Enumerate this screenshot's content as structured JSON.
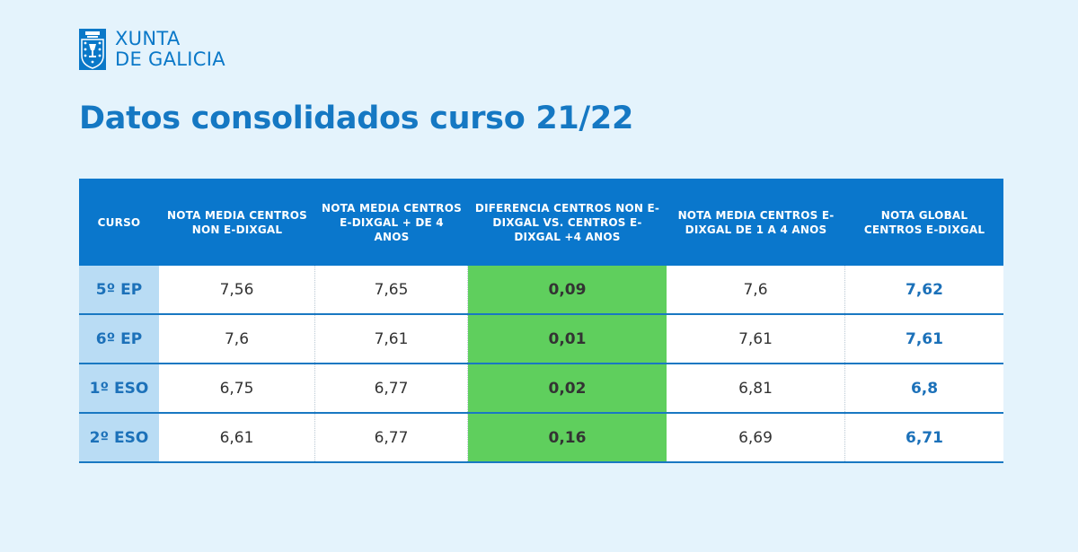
{
  "logo": {
    "line1": "XUNTA",
    "line2": "DE GALICIA"
  },
  "title": "Datos consolidados curso 21/22",
  "colors": {
    "background": "#e4f3fc",
    "header": "#0a77cc",
    "course_cell": "#b9dcf4",
    "difference_cell": "#5fcf5d",
    "accent_text": "#1c71b9"
  },
  "table": {
    "headers": [
      "CURSO",
      "NOTA MEDIA CENTROS NON E-DIXGAL",
      "NOTA MEDIA CENTROS E-DIXGAL + DE 4 ANOS",
      "DIFERENCIA CENTROS NON E-DIXGAL VS. CENTROS E-DIXGAL +4 ANOS",
      "NOTA MEDIA CENTROS E-DIXGAL DE 1 A 4 ANOS",
      "NOTA GLOBAL CENTROS E-DIXGAL"
    ],
    "rows": [
      [
        "5º EP",
        "7,56",
        "7,65",
        "0,09",
        "7,6",
        "7,62"
      ],
      [
        "6º EP",
        "7,6",
        "7,61",
        "0,01",
        "7,61",
        "7,61"
      ],
      [
        "1º ESO",
        "6,75",
        "6,77",
        "0,02",
        "6,81",
        "6,8"
      ],
      [
        "2º ESO",
        "6,61",
        "6,77",
        "0,16",
        "6,69",
        "6,71"
      ]
    ]
  }
}
